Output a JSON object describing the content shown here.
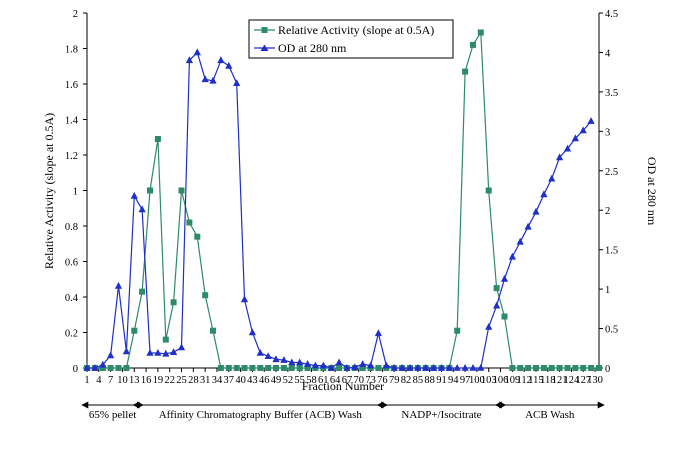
{
  "chart_data": {
    "type": "line",
    "xlabel": "Fraction Number",
    "ylabel": "Relative Activity (slope at 0.5A)",
    "y2label": "OD at 280 nm",
    "ylim": [
      0,
      2
    ],
    "y2lim": [
      0,
      4.5
    ],
    "grid": false,
    "legend_position": "top-center",
    "x_tick_labels": [
      "1",
      "4",
      "7",
      "10",
      "13",
      "16",
      "19",
      "22",
      "25",
      "28",
      "31",
      "34",
      "37",
      "40",
      "43",
      "46",
      "49",
      "52",
      "55",
      "58",
      "61",
      "64",
      "67",
      "70",
      "73",
      "76",
      "79",
      "82",
      "85",
      "88",
      "91",
      "94",
      "97",
      "100",
      "103",
      "106",
      "109",
      "112",
      "115",
      "118",
      "121",
      "124",
      "127",
      "130"
    ],
    "y_tick_labels": [
      "0",
      "0.2",
      "0.4",
      "0.6",
      "0.8",
      "1",
      "1.2",
      "1.4",
      "1.6",
      "1.8",
      "2"
    ],
    "y2_tick_labels": [
      "0",
      "0.5",
      "1",
      "1.5",
      "2",
      "2.5",
      "3",
      "3.5",
      "4",
      "4.5"
    ],
    "series": [
      {
        "name": "Relative Activity (slope at 0.5A)",
        "axis": "left",
        "color": "#2e8b6a",
        "marker": "square",
        "points": [
          [
            1,
            0
          ],
          [
            3,
            0
          ],
          [
            5,
            0
          ],
          [
            7,
            0
          ],
          [
            9,
            0
          ],
          [
            11,
            0
          ],
          [
            13,
            0.21
          ],
          [
            15,
            0.43
          ],
          [
            17,
            1.0
          ],
          [
            19,
            1.29
          ],
          [
            21,
            0.16
          ],
          [
            23,
            0.37
          ],
          [
            25,
            1.0
          ],
          [
            27,
            0.82
          ],
          [
            29,
            0.74
          ],
          [
            31,
            0.41
          ],
          [
            33,
            0.21
          ],
          [
            35,
            0
          ],
          [
            37,
            0
          ],
          [
            39,
            0
          ],
          [
            41,
            0
          ],
          [
            43,
            0
          ],
          [
            45,
            0
          ],
          [
            47,
            0
          ],
          [
            49,
            0
          ],
          [
            51,
            0
          ],
          [
            53,
            0
          ],
          [
            55,
            0
          ],
          [
            57,
            0
          ],
          [
            59,
            0
          ],
          [
            61,
            0
          ],
          [
            63,
            0
          ],
          [
            65,
            0
          ],
          [
            67,
            0
          ],
          [
            69,
            0
          ],
          [
            71,
            0
          ],
          [
            73,
            0
          ],
          [
            75,
            0
          ],
          [
            77,
            0
          ],
          [
            79,
            0
          ],
          [
            81,
            0
          ],
          [
            83,
            0
          ],
          [
            85,
            0
          ],
          [
            87,
            0
          ],
          [
            89,
            0
          ],
          [
            91,
            0
          ],
          [
            93,
            0
          ],
          [
            95,
            0.21
          ],
          [
            97,
            1.67
          ],
          [
            99,
            1.82
          ],
          [
            101,
            1.89
          ],
          [
            103,
            1.0
          ],
          [
            105,
            0.45
          ],
          [
            107,
            0.29
          ],
          [
            109,
            0
          ],
          [
            111,
            0
          ],
          [
            113,
            0
          ],
          [
            115,
            0
          ],
          [
            117,
            0
          ],
          [
            119,
            0
          ],
          [
            121,
            0
          ],
          [
            123,
            0
          ],
          [
            125,
            0
          ],
          [
            127,
            0
          ],
          [
            129,
            0
          ],
          [
            131,
            0
          ]
        ]
      },
      {
        "name": "OD at 280 nm",
        "axis": "right",
        "color": "#1f2fc8",
        "marker": "triangle",
        "points": [
          [
            1,
            0
          ],
          [
            3,
            0
          ],
          [
            5,
            0.04
          ],
          [
            7,
            0.16
          ],
          [
            9,
            1.04
          ],
          [
            11,
            0.21
          ],
          [
            13,
            2.18
          ],
          [
            15,
            2.01
          ],
          [
            17,
            0.19
          ],
          [
            19,
            0.19
          ],
          [
            21,
            0.18
          ],
          [
            23,
            0.2
          ],
          [
            25,
            0.26
          ],
          [
            27,
            3.9
          ],
          [
            29,
            4.0
          ],
          [
            31,
            3.66
          ],
          [
            33,
            3.64
          ],
          [
            35,
            3.9
          ],
          [
            37,
            3.83
          ],
          [
            39,
            3.61
          ],
          [
            41,
            0.87
          ],
          [
            43,
            0.45
          ],
          [
            45,
            0.19
          ],
          [
            47,
            0.15
          ],
          [
            49,
            0.11
          ],
          [
            51,
            0.1
          ],
          [
            53,
            0.07
          ],
          [
            55,
            0.07
          ],
          [
            57,
            0.05
          ],
          [
            59,
            0.03
          ],
          [
            61,
            0.03
          ],
          [
            63,
            0
          ],
          [
            65,
            0.07
          ],
          [
            67,
            0
          ],
          [
            69,
            0.01
          ],
          [
            71,
            0.05
          ],
          [
            73,
            0.03
          ],
          [
            75,
            0.44
          ],
          [
            77,
            0.03
          ],
          [
            79,
            0
          ],
          [
            81,
            0
          ],
          [
            83,
            0
          ],
          [
            85,
            0
          ],
          [
            87,
            0
          ],
          [
            89,
            0
          ],
          [
            91,
            0
          ],
          [
            93,
            0
          ],
          [
            95,
            0
          ],
          [
            97,
            0
          ],
          [
            99,
            0
          ],
          [
            101,
            0
          ],
          [
            103,
            0.52
          ],
          [
            105,
            0.79
          ],
          [
            107,
            1.13
          ],
          [
            109,
            1.41
          ],
          [
            111,
            1.6
          ],
          [
            113,
            1.79
          ],
          [
            115,
            1.98
          ],
          [
            117,
            2.2
          ],
          [
            119,
            2.4
          ],
          [
            121,
            2.67
          ],
          [
            123,
            2.78
          ],
          [
            125,
            2.91
          ],
          [
            127,
            3.01
          ],
          [
            129,
            3.13
          ]
        ]
      }
    ],
    "segments": [
      {
        "label": "65% pellet",
        "x_start": 1,
        "x_end": 14
      },
      {
        "label": "Affinity Chromatography Buffer (ACB) Wash",
        "x_start": 14,
        "x_end": 76
      },
      {
        "label": "NADP+/Isocitrate",
        "x_start": 76,
        "x_end": 106
      },
      {
        "label": "ACB Wash",
        "x_start": 106,
        "x_end": 131
      }
    ]
  }
}
